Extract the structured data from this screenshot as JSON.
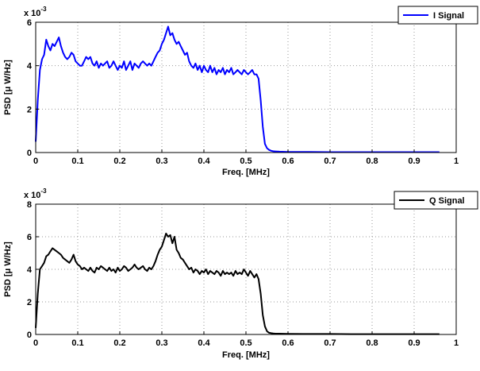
{
  "chart_data": [
    {
      "type": "line",
      "xlabel": "Freq. [MHz]",
      "ylabel": "PSD [μ W/Hz]",
      "exponent_label": "x 10",
      "exponent_power": "-3",
      "xlim": [
        0,
        1
      ],
      "ylim": [
        0,
        6
      ],
      "x_ticks": [
        "0",
        "0.1",
        "0.2",
        "0.3",
        "0.4",
        "0.5",
        "0.6",
        "0.7",
        "0.8",
        "0.9",
        "1"
      ],
      "y_ticks": [
        "0",
        "2",
        "4",
        "6"
      ],
      "grid": true,
      "legend_position": "top-right",
      "series": [
        {
          "name": "I Signal",
          "color": "#0000ff",
          "x": [
            0.0,
            0.005,
            0.01,
            0.015,
            0.02,
            0.025,
            0.03,
            0.035,
            0.04,
            0.045,
            0.05,
            0.055,
            0.06,
            0.065,
            0.07,
            0.075,
            0.08,
            0.085,
            0.09,
            0.095,
            0.1,
            0.105,
            0.11,
            0.115,
            0.12,
            0.125,
            0.13,
            0.135,
            0.14,
            0.145,
            0.15,
            0.155,
            0.16,
            0.165,
            0.17,
            0.175,
            0.18,
            0.185,
            0.19,
            0.195,
            0.2,
            0.205,
            0.21,
            0.215,
            0.22,
            0.225,
            0.23,
            0.235,
            0.24,
            0.245,
            0.25,
            0.255,
            0.26,
            0.265,
            0.27,
            0.275,
            0.28,
            0.285,
            0.29,
            0.295,
            0.3,
            0.305,
            0.31,
            0.315,
            0.32,
            0.325,
            0.33,
            0.335,
            0.34,
            0.345,
            0.35,
            0.355,
            0.36,
            0.365,
            0.37,
            0.375,
            0.38,
            0.385,
            0.39,
            0.395,
            0.4,
            0.405,
            0.41,
            0.415,
            0.42,
            0.425,
            0.43,
            0.435,
            0.44,
            0.445,
            0.45,
            0.455,
            0.46,
            0.465,
            0.47,
            0.475,
            0.48,
            0.485,
            0.49,
            0.495,
            0.5,
            0.505,
            0.51,
            0.515,
            0.52,
            0.525,
            0.53,
            0.535,
            0.54,
            0.545,
            0.55,
            0.555,
            0.56,
            0.565,
            0.57,
            0.58,
            0.6,
            0.65,
            0.7,
            0.75,
            0.8,
            0.85,
            0.9,
            0.96
          ],
          "y": [
            0.5,
            2.4,
            3.8,
            4.3,
            4.5,
            5.2,
            4.9,
            4.7,
            5.0,
            4.9,
            5.1,
            5.3,
            4.9,
            4.6,
            4.4,
            4.3,
            4.4,
            4.6,
            4.5,
            4.2,
            4.1,
            4.0,
            4.0,
            4.2,
            4.4,
            4.3,
            4.4,
            4.1,
            4.0,
            4.2,
            3.9,
            4.1,
            4.0,
            4.1,
            4.2,
            3.9,
            4.0,
            4.2,
            4.0,
            3.8,
            4.0,
            3.9,
            4.2,
            3.8,
            4.0,
            4.2,
            3.8,
            4.1,
            4.0,
            3.9,
            4.1,
            4.2,
            4.1,
            4.0,
            4.1,
            4.0,
            4.2,
            4.4,
            4.6,
            4.7,
            5.0,
            5.2,
            5.5,
            5.8,
            5.4,
            5.5,
            5.2,
            5.0,
            5.1,
            4.9,
            4.7,
            4.5,
            4.6,
            4.2,
            4.0,
            3.9,
            4.1,
            3.8,
            4.0,
            3.7,
            4.0,
            3.8,
            3.7,
            4.0,
            3.7,
            3.9,
            3.6,
            3.8,
            3.7,
            3.9,
            3.6,
            3.8,
            3.7,
            3.9,
            3.6,
            3.7,
            3.8,
            3.7,
            3.6,
            3.8,
            3.7,
            3.6,
            3.7,
            3.8,
            3.6,
            3.6,
            3.4,
            2.4,
            1.2,
            0.4,
            0.2,
            0.12,
            0.08,
            0.06,
            0.05,
            0.04,
            0.03,
            0.03,
            0.02,
            0.02,
            0.02,
            0.02,
            0.02,
            0.02
          ]
        }
      ]
    },
    {
      "type": "line",
      "xlabel": "Freq. [MHz]",
      "ylabel": "PSD [μ W/Hz]",
      "exponent_label": "x 10",
      "exponent_power": "-3",
      "xlim": [
        0,
        1
      ],
      "ylim": [
        0,
        8
      ],
      "x_ticks": [
        "0",
        "0.1",
        "0.2",
        "0.3",
        "0.4",
        "0.5",
        "0.6",
        "0.7",
        "0.8",
        "0.9",
        "1"
      ],
      "y_ticks": [
        "0",
        "2",
        "4",
        "6",
        "8"
      ],
      "grid": true,
      "legend_position": "top-right",
      "series": [
        {
          "name": "Q Signal",
          "color": "#000000",
          "x": [
            0.0,
            0.005,
            0.01,
            0.015,
            0.02,
            0.025,
            0.03,
            0.035,
            0.04,
            0.045,
            0.05,
            0.055,
            0.06,
            0.065,
            0.07,
            0.075,
            0.08,
            0.085,
            0.09,
            0.095,
            0.1,
            0.105,
            0.11,
            0.115,
            0.12,
            0.125,
            0.13,
            0.135,
            0.14,
            0.145,
            0.15,
            0.155,
            0.16,
            0.165,
            0.17,
            0.175,
            0.18,
            0.185,
            0.19,
            0.195,
            0.2,
            0.205,
            0.21,
            0.215,
            0.22,
            0.225,
            0.23,
            0.235,
            0.24,
            0.245,
            0.25,
            0.255,
            0.26,
            0.265,
            0.27,
            0.275,
            0.28,
            0.285,
            0.29,
            0.295,
            0.3,
            0.305,
            0.31,
            0.315,
            0.32,
            0.325,
            0.33,
            0.335,
            0.34,
            0.345,
            0.35,
            0.355,
            0.36,
            0.365,
            0.37,
            0.375,
            0.38,
            0.385,
            0.39,
            0.395,
            0.4,
            0.405,
            0.41,
            0.415,
            0.42,
            0.425,
            0.43,
            0.435,
            0.44,
            0.445,
            0.45,
            0.455,
            0.46,
            0.465,
            0.47,
            0.475,
            0.48,
            0.485,
            0.49,
            0.495,
            0.5,
            0.505,
            0.51,
            0.515,
            0.52,
            0.525,
            0.53,
            0.535,
            0.54,
            0.545,
            0.55,
            0.555,
            0.56,
            0.565,
            0.57,
            0.58,
            0.6,
            0.65,
            0.7,
            0.75,
            0.8,
            0.85,
            0.9,
            0.96
          ],
          "y": [
            0.4,
            2.5,
            4.0,
            4.2,
            4.4,
            4.8,
            4.9,
            5.1,
            5.3,
            5.2,
            5.1,
            5.0,
            4.9,
            4.7,
            4.6,
            4.5,
            4.4,
            4.6,
            4.9,
            4.5,
            4.3,
            4.2,
            4.0,
            4.1,
            4.0,
            3.9,
            4.1,
            3.9,
            3.8,
            4.1,
            4.0,
            4.2,
            4.1,
            4.0,
            3.9,
            4.1,
            3.9,
            4.0,
            3.8,
            4.1,
            3.9,
            4.0,
            4.2,
            4.1,
            3.9,
            4.0,
            4.1,
            4.3,
            4.1,
            4.0,
            4.1,
            4.2,
            4.0,
            3.9,
            4.1,
            4.0,
            4.2,
            4.5,
            4.9,
            5.2,
            5.4,
            5.8,
            6.2,
            6.0,
            6.1,
            5.6,
            6.0,
            5.2,
            5.0,
            4.7,
            4.6,
            4.4,
            4.2,
            4.0,
            4.1,
            3.8,
            4.0,
            3.9,
            3.7,
            3.9,
            3.8,
            4.0,
            3.7,
            3.9,
            3.8,
            3.7,
            3.9,
            3.8,
            3.6,
            3.9,
            3.7,
            3.8,
            3.7,
            3.8,
            3.6,
            3.9,
            3.7,
            3.8,
            3.7,
            4.0,
            3.8,
            3.6,
            3.9,
            3.7,
            3.5,
            3.7,
            3.4,
            2.5,
            1.2,
            0.5,
            0.2,
            0.1,
            0.08,
            0.06,
            0.05,
            0.05,
            0.04,
            0.03,
            0.03,
            0.02,
            0.02,
            0.02,
            0.02,
            0.02
          ]
        }
      ]
    }
  ]
}
